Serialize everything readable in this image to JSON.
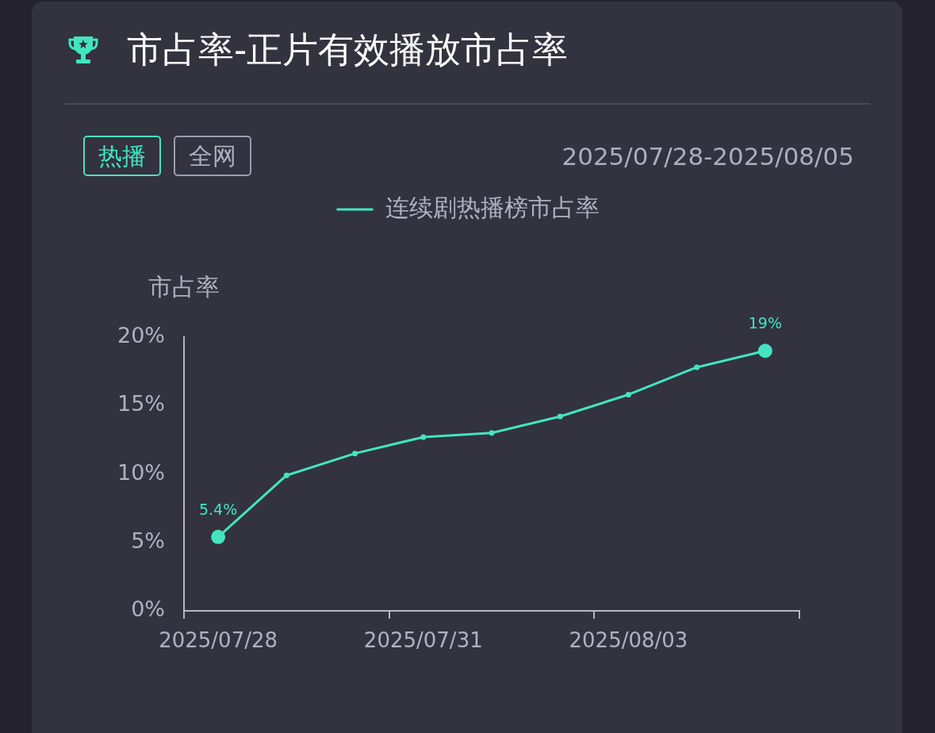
{
  "chart_data": {
    "type": "line",
    "title": "市占率-正片有效播放市占率",
    "subtitle": "2025/07/28-2025/08/05",
    "annotations": [
      "热播",
      "全网"
    ],
    "ylabel": "市占率",
    "categories": [
      "2025/07/28",
      null,
      null,
      "2025/07/31",
      null,
      null,
      "2025/08/03",
      null,
      null
    ],
    "series": [
      {
        "name": "连续剧热播榜市占率",
        "color": "#42e5c0",
        "values": [
          5.4,
          9.9,
          11.5,
          12.7,
          13.0,
          14.2,
          15.8,
          17.8,
          19
        ],
        "value_labels": [
          "5.4%",
          null,
          null,
          null,
          null,
          null,
          null,
          null,
          "19%"
        ]
      }
    ],
    "ylim": [
      0,
      20
    ],
    "yticks": [
      {
        "value": 0,
        "label": "0%"
      },
      {
        "value": 5,
        "label": "5%"
      },
      {
        "value": 10,
        "label": "10%"
      },
      {
        "value": 15,
        "label": "15%"
      },
      {
        "value": 20,
        "label": "20%"
      }
    ],
    "legend": "top",
    "marker": "circle",
    "line_style": "solid"
  }
}
